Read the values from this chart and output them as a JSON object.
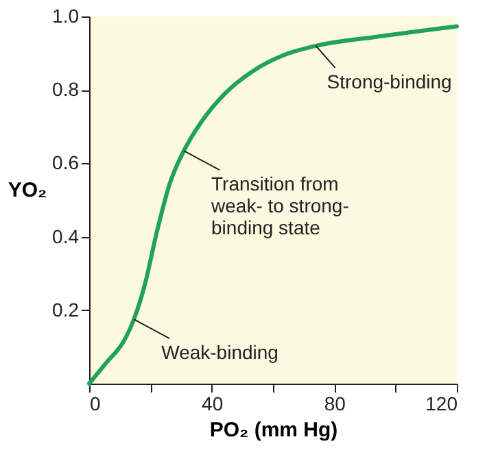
{
  "chart_data": {
    "type": "line",
    "xlabel": "PO₂ (mm Hg)",
    "ylabel": "YO₂",
    "x": [
      0,
      5.6,
      11.6,
      14.6,
      18.3,
      22,
      26.4,
      30.9,
      36.8,
      44.3,
      53.2,
      63.6,
      74,
      93.3,
      120
    ],
    "series": [
      {
        "color": "#1fa35a",
        "values": [
          0,
          0.057,
          0.12,
          0.175,
          0.274,
          0.41,
          0.547,
          0.634,
          0.715,
          0.79,
          0.85,
          0.895,
          0.92,
          0.944,
          0.973
        ]
      }
    ],
    "xlim": [
      0,
      120
    ],
    "ylim": [
      0,
      1
    ],
    "xticks": [
      0,
      {
        "value": 20,
        "label": null
      },
      40,
      {
        "value": 60,
        "label": null
      },
      80,
      {
        "value": 100,
        "label": null
      },
      120
    ],
    "yticks": [
      0.2,
      0.4,
      0.6,
      0.8,
      {
        "value": 1,
        "label": "1.0"
      }
    ],
    "annotations": [
      {
        "text": "Weak-binding",
        "x": 14.6,
        "y": 0.175
      },
      {
        "text": "Transition from\nweak- to strong-\nbinding state",
        "x": 30.9,
        "y": 0.634
      },
      {
        "text": "Strong-binding",
        "x": 74,
        "y": 0.92
      }
    ],
    "grid": false,
    "marker": "none",
    "line_style": "solid"
  }
}
